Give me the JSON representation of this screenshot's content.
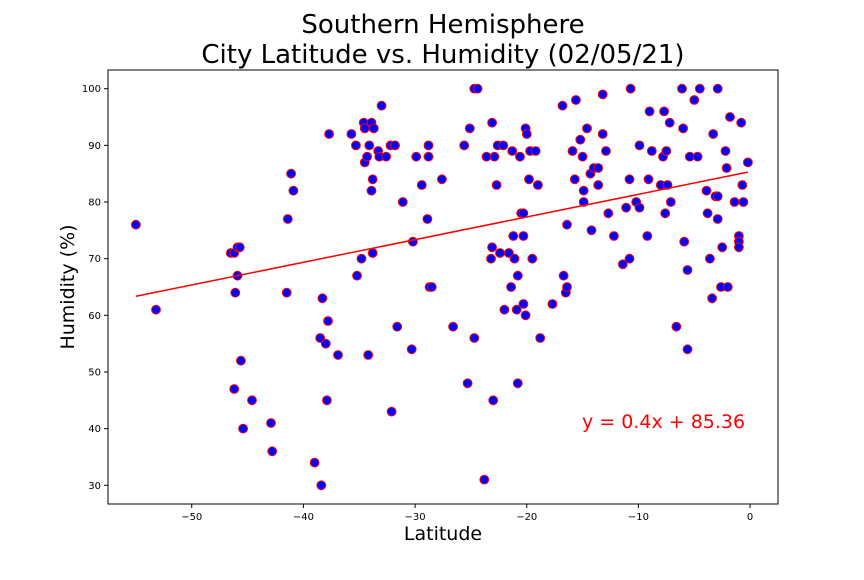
{
  "chart_data": {
    "type": "scatter",
    "title_line1": "Southern Hemisphere",
    "title_line2": "City Latitude vs. Humidity (02/05/21)",
    "xlabel": "Latitude",
    "ylabel": "Humidity (%)",
    "xlim": [
      -57.5,
      2.5
    ],
    "ylim": [
      26.7,
      103.3
    ],
    "xticks": [
      -50,
      -40,
      -30,
      -20,
      -10,
      0
    ],
    "xtick_labels": [
      "−50",
      "−40",
      "−30",
      "−20",
      "−10",
      "0"
    ],
    "yticks": [
      30,
      40,
      50,
      60,
      70,
      80,
      90,
      100
    ],
    "ytick_labels": [
      "30",
      "40",
      "50",
      "60",
      "70",
      "80",
      "90",
      "100"
    ],
    "grid": false,
    "marker_fill": "#0000ff",
    "marker_edge": "#ff0000",
    "regression": {
      "slope": 0.4,
      "intercept": 85.36,
      "x_range": [
        -55,
        -0.2
      ],
      "color": "#ff0000"
    },
    "equation": "y = 0.4x + 85.36",
    "points": [
      [
        -55,
        76
      ],
      [
        -53.2,
        61
      ],
      [
        -46.5,
        71
      ],
      [
        -46.2,
        71
      ],
      [
        -45.9,
        72
      ],
      [
        -45.7,
        72
      ],
      [
        -45.9,
        67
      ],
      [
        -46.1,
        64
      ],
      [
        -46.2,
        47
      ],
      [
        -45.6,
        52
      ],
      [
        -45.4,
        40
      ],
      [
        -44.6,
        45
      ],
      [
        -42.9,
        41
      ],
      [
        -42.8,
        36
      ],
      [
        -41.4,
        77
      ],
      [
        -41.5,
        64
      ],
      [
        -41.1,
        85
      ],
      [
        -40.9,
        82
      ],
      [
        -39.0,
        34
      ],
      [
        -38.4,
        30
      ],
      [
        -38.5,
        56
      ],
      [
        -38.3,
        63
      ],
      [
        -38.0,
        55
      ],
      [
        -37.8,
        59
      ],
      [
        -37.9,
        45
      ],
      [
        -37.7,
        92
      ],
      [
        -36.9,
        53
      ],
      [
        -35.7,
        92
      ],
      [
        -35.3,
        90
      ],
      [
        -35.2,
        67
      ],
      [
        -34.8,
        70
      ],
      [
        -34.6,
        94
      ],
      [
        -34.5,
        93
      ],
      [
        -34.5,
        87
      ],
      [
        -34.3,
        88
      ],
      [
        -34.2,
        53
      ],
      [
        -34.1,
        90
      ],
      [
        -33.9,
        94
      ],
      [
        -33.9,
        82
      ],
      [
        -33.8,
        84
      ],
      [
        -33.8,
        71
      ],
      [
        -33.7,
        93
      ],
      [
        -33.3,
        89
      ],
      [
        -33.2,
        88
      ],
      [
        -33.0,
        97
      ],
      [
        -32.6,
        88
      ],
      [
        -32.2,
        90
      ],
      [
        -32.1,
        43
      ],
      [
        -31.8,
        90
      ],
      [
        -31.6,
        58
      ],
      [
        -31.1,
        80
      ],
      [
        -30.3,
        54
      ],
      [
        -30.2,
        73
      ],
      [
        -29.9,
        88
      ],
      [
        -29.4,
        83
      ],
      [
        -28.8,
        88
      ],
      [
        -28.8,
        90
      ],
      [
        -28.9,
        77
      ],
      [
        -28.7,
        65
      ],
      [
        -28.5,
        65
      ],
      [
        -27.6,
        84
      ],
      [
        -26.6,
        58
      ],
      [
        -25.6,
        90
      ],
      [
        -25.3,
        48
      ],
      [
        -25.1,
        93
      ],
      [
        -24.7,
        100
      ],
      [
        -24.4,
        100
      ],
      [
        -24.7,
        56
      ],
      [
        -23.8,
        31
      ],
      [
        -23.6,
        88
      ],
      [
        -23.1,
        94
      ],
      [
        -23.1,
        72
      ],
      [
        -23.2,
        70
      ],
      [
        -23.0,
        45
      ],
      [
        -22.9,
        88
      ],
      [
        -22.7,
        83
      ],
      [
        -22.6,
        90
      ],
      [
        -22.4,
        71
      ],
      [
        -22.1,
        90
      ],
      [
        -22.0,
        61
      ],
      [
        -21.6,
        71
      ],
      [
        -21.4,
        65
      ],
      [
        -21.3,
        89
      ],
      [
        -21.2,
        74
      ],
      [
        -21.1,
        70
      ],
      [
        -20.9,
        61
      ],
      [
        -20.8,
        67
      ],
      [
        -20.8,
        48
      ],
      [
        -20.6,
        88
      ],
      [
        -20.5,
        78
      ],
      [
        -20.3,
        78
      ],
      [
        -20.3,
        74
      ],
      [
        -20.3,
        62
      ],
      [
        -20.1,
        60
      ],
      [
        -20.1,
        93
      ],
      [
        -20.0,
        92
      ],
      [
        -19.8,
        84
      ],
      [
        -19.7,
        89
      ],
      [
        -19.5,
        70
      ],
      [
        -19.2,
        89
      ],
      [
        -19.0,
        83
      ],
      [
        -18.8,
        56
      ],
      [
        -17.7,
        62
      ],
      [
        -16.8,
        97
      ],
      [
        -16.7,
        67
      ],
      [
        -16.5,
        64
      ],
      [
        -16.4,
        65
      ],
      [
        -16.4,
        76
      ],
      [
        -15.9,
        89
      ],
      [
        -15.7,
        84
      ],
      [
        -15.6,
        98
      ],
      [
        -15.2,
        91
      ],
      [
        -15.0,
        88
      ],
      [
        -14.9,
        82
      ],
      [
        -14.9,
        80
      ],
      [
        -14.6,
        93
      ],
      [
        -14.3,
        85
      ],
      [
        -14.2,
        75
      ],
      [
        -14.0,
        86
      ],
      [
        -13.6,
        83
      ],
      [
        -13.6,
        86
      ],
      [
        -13.2,
        92
      ],
      [
        -13.2,
        99
      ],
      [
        -12.9,
        89
      ],
      [
        -12.7,
        78
      ],
      [
        -12.2,
        74
      ],
      [
        -11.4,
        69
      ],
      [
        -11.1,
        79
      ],
      [
        -10.8,
        84
      ],
      [
        -10.7,
        100
      ],
      [
        -10.8,
        70
      ],
      [
        -10.2,
        80
      ],
      [
        -9.9,
        79
      ],
      [
        -9.9,
        90
      ],
      [
        -9.2,
        74
      ],
      [
        -9.1,
        84
      ],
      [
        -9.0,
        96
      ],
      [
        -8.8,
        89
      ],
      [
        -8.0,
        83
      ],
      [
        -7.7,
        96
      ],
      [
        -7.8,
        88
      ],
      [
        -7.6,
        78
      ],
      [
        -7.4,
        83
      ],
      [
        -7.5,
        89
      ],
      [
        -7.1,
        80
      ],
      [
        -7.2,
        94
      ],
      [
        -6.6,
        58
      ],
      [
        -6.1,
        100
      ],
      [
        -6.0,
        93
      ],
      [
        -5.9,
        73
      ],
      [
        -5.6,
        68
      ],
      [
        -5.6,
        54
      ],
      [
        -5.4,
        88
      ],
      [
        -5.0,
        98
      ],
      [
        -4.7,
        88
      ],
      [
        -4.5,
        100
      ],
      [
        -3.9,
        82
      ],
      [
        -3.8,
        78
      ],
      [
        -3.6,
        70
      ],
      [
        -3.4,
        63
      ],
      [
        -3.3,
        92
      ],
      [
        -3.1,
        81
      ],
      [
        -2.9,
        81
      ],
      [
        -2.9,
        77
      ],
      [
        -2.9,
        100
      ],
      [
        -2.6,
        65
      ],
      [
        -2.5,
        72
      ],
      [
        -2.2,
        89
      ],
      [
        -2.1,
        86
      ],
      [
        -2.0,
        65
      ],
      [
        -1.8,
        95
      ],
      [
        -1.4,
        80
      ],
      [
        -1.0,
        74
      ],
      [
        -1.0,
        73
      ],
      [
        -1.0,
        72
      ],
      [
        -0.8,
        94
      ],
      [
        -0.7,
        83
      ],
      [
        -0.6,
        80
      ],
      [
        -0.2,
        87
      ]
    ]
  }
}
